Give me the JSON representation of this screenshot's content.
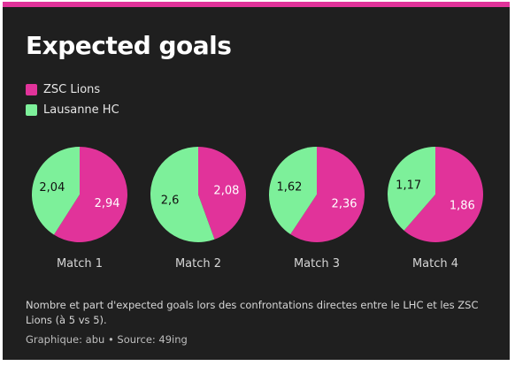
{
  "title": "Expected goals",
  "legend": [
    {
      "label": "ZSC Lions",
      "color": "#e1339a"
    },
    {
      "label": "Lausanne HC",
      "color": "#7df09a"
    }
  ],
  "chart_data": {
    "type": "pie",
    "title": "Expected goals",
    "series_names": [
      "ZSC Lions",
      "Lausanne HC"
    ],
    "matches": [
      {
        "label": "Match 1",
        "zsc": 2.94,
        "lhc": 2.04,
        "zsc_label": "2,94",
        "lhc_label": "2,04"
      },
      {
        "label": "Match 2",
        "zsc": 2.08,
        "lhc": 2.6,
        "zsc_label": "2,08",
        "lhc_label": "2,6"
      },
      {
        "label": "Match 3",
        "zsc": 2.36,
        "lhc": 1.62,
        "zsc_label": "2,36",
        "lhc_label": "1,62"
      },
      {
        "label": "Match 4",
        "zsc": 1.86,
        "lhc": 1.17,
        "zsc_label": "1,86",
        "lhc_label": "1,17"
      }
    ]
  },
  "note": "Nombre et part d'expected goals lors des confrontations directes entre le LHC et les ZSC Lions (à 5 vs 5).",
  "credit": "Graphique: abu • Source: 49ing"
}
